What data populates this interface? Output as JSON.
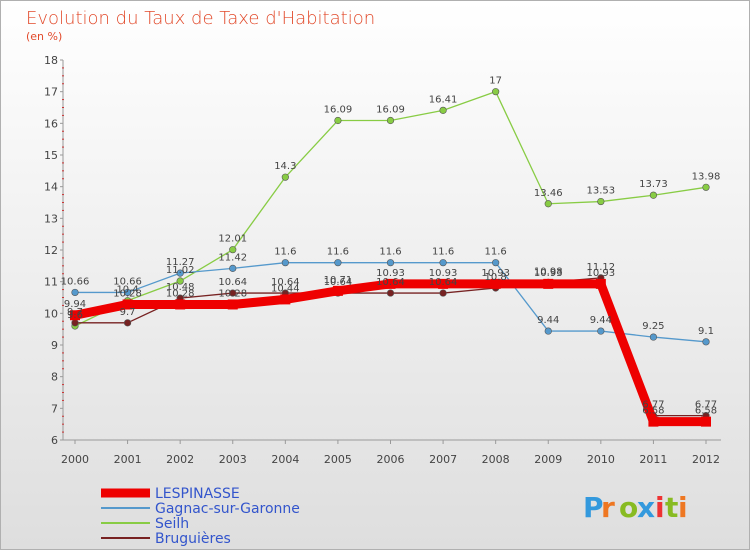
{
  "chart_data": {
    "type": "line",
    "title": "Evolution du Taux de Taxe d'Habitation",
    "subtitle": "(en %)",
    "x": [
      "2000",
      "2001",
      "2002",
      "2003",
      "2004",
      "2005",
      "2006",
      "2007",
      "2008",
      "2009",
      "2010",
      "2011",
      "2012"
    ],
    "ylim": [
      6,
      18
    ],
    "yticks": [
      6,
      7,
      8,
      9,
      10,
      11,
      12,
      13,
      14,
      15,
      16,
      17,
      18
    ],
    "grid": false,
    "legend_position": "bottom-left",
    "series": [
      {
        "name": "LESPINASSE",
        "color": "#ee0000",
        "values": [
          9.94,
          10.28,
          10.28,
          10.28,
          10.44,
          10.71,
          10.93,
          10.93,
          10.93,
          10.93,
          10.93,
          6.58,
          6.58
        ],
        "labels": [
          "9.94",
          "10.28",
          "10.28",
          "10.28",
          "10.44",
          "10.71",
          "10.93",
          "10.93",
          "10.93",
          "10.93",
          "10.93",
          "6.58",
          "6.58"
        ]
      },
      {
        "name": "Gagnac-sur-Garonne",
        "color": "#5599cc",
        "values": [
          10.66,
          10.66,
          11.27,
          11.42,
          11.6,
          11.6,
          11.6,
          11.6,
          11.6,
          9.44,
          9.44,
          9.25,
          9.1
        ],
        "labels": [
          "10.66",
          "10.66",
          "11.27",
          "11.42",
          "11.6",
          "11.6",
          "11.6",
          "11.6",
          "11.6",
          "9.44",
          "9.44",
          "9.25",
          "9.1"
        ]
      },
      {
        "name": "Seilh",
        "color": "#88cc44",
        "values": [
          9.6,
          10.4,
          11.02,
          12.01,
          14.3,
          16.09,
          16.09,
          16.41,
          17,
          13.46,
          13.53,
          13.73,
          13.98
        ],
        "labels": [
          "9.6",
          "10.4",
          "11.02",
          "12.01",
          "14.3",
          "16.09",
          "16.09",
          "16.41",
          "17",
          "13.46",
          "13.53",
          "13.73",
          "13.98"
        ]
      },
      {
        "name": "Bruguières",
        "color": "#772222",
        "values": [
          9.7,
          9.7,
          10.48,
          10.64,
          10.64,
          10.64,
          10.64,
          10.64,
          10.8,
          10.98,
          11.12,
          6.77,
          6.77
        ],
        "labels": [
          "9.7",
          "9.7",
          "10.48",
          "10.64",
          "10.64",
          "10.64",
          "10.64",
          "10.64",
          "10.8",
          "10.98",
          "11.12",
          "6.77",
          "6.77"
        ]
      }
    ]
  },
  "logo": {
    "letters": [
      "P",
      "r",
      "o",
      "x",
      "i",
      "t",
      "i"
    ],
    "colors": [
      "#3399dd",
      "#ee7722",
      "#88bb22",
      "#3399dd",
      "#ee3333",
      "#88bb22",
      "#ee7722"
    ]
  }
}
